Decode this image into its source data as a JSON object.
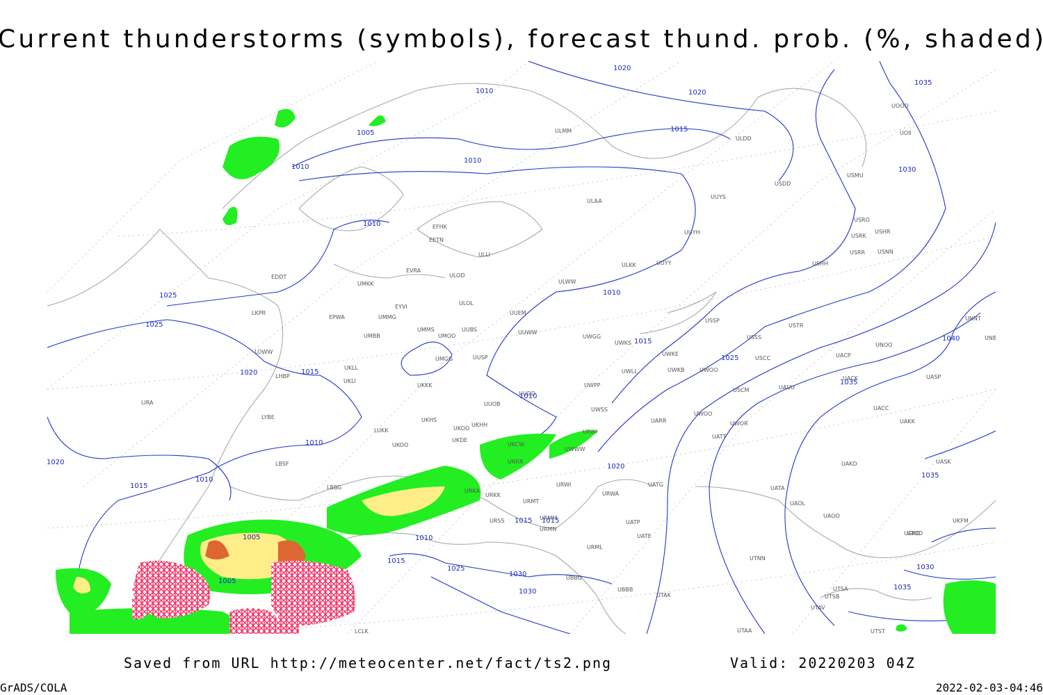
{
  "title": "Current thunderstorms (symbols), forecast thund. prob. (%, shaded)",
  "footer": {
    "source": "Saved from URL http://meteocenter.net/fact/ts2.png",
    "valid": "Valid: 20220203 04Z",
    "software": "GrADS/COLA",
    "timestamp": "2022-02-03-04:46"
  },
  "map": {
    "stations": [
      "ULMM",
      "ULDD",
      "USDD",
      "UUYS",
      "ULAA",
      "USMU",
      "UOOO",
      "UOII",
      "EFHK",
      "EETN",
      "ULLI",
      "UUYH",
      "USRO",
      "USRK",
      "USHR",
      "USRR",
      "USNN",
      "UUYY",
      "ULKK",
      "USHH",
      "EVRA",
      "ULOD",
      "EDDT",
      "UMKK",
      "ULWW",
      "ULOL",
      "EYVI",
      "UUEM",
      "LKPR",
      "EPWA",
      "UMMG",
      "USSP",
      "USTR",
      "UNNT",
      "UMMS",
      "UUBS",
      "UUWW",
      "UMBB",
      "UMOO",
      "UWGG",
      "UWKS",
      "USSS",
      "UNOO",
      "UNBB",
      "UWKE",
      "USCC",
      "UACP",
      "UMGG",
      "UUSP",
      "LOWW",
      "UKLL",
      "UKLI",
      "LHBP",
      "UWLL",
      "UWKB",
      "UWOO",
      "UACK",
      "UASP",
      "UKKK",
      "UUDD",
      "UWPP",
      "USCM",
      "UAUU",
      "LIRA",
      "UUOB",
      "UWSS",
      "UACC",
      "UAKK",
      "LYBE",
      "UKHS",
      "UKOO",
      "UKHH",
      "UWOO",
      "UWOR",
      "UARR",
      "LUKK",
      "UKDE",
      "UKOO",
      "UKCW",
      "UATT",
      "UWWW",
      "URWI",
      "LBSF",
      "URRR",
      "UAKD",
      "UASK",
      "LBBG",
      "URKA",
      "URKK",
      "URWI",
      "UATG",
      "UATA",
      "URWA",
      "URMT",
      "UAOL",
      "URSS",
      "URMM",
      "UAOO",
      "UATP",
      "URMN",
      "UATE",
      "UKFM",
      "UGKO",
      "URML",
      "UTNN",
      "UBBG",
      "UBBB",
      "UTAK",
      "UTSA",
      "UTSB",
      "UTAV",
      "UTAA",
      "LCLK",
      "UTST",
      "UTDD"
    ],
    "isobar_labels": [
      1020,
      1010,
      1020,
      1035,
      1015,
      1005,
      1010,
      1010,
      1030,
      1010,
      1025,
      1010,
      1025,
      1015,
      1025,
      1040,
      1020,
      1015,
      1035,
      1010,
      1010,
      1020,
      1020,
      1035,
      1010,
      1015,
      1015,
      1015,
      1005,
      1010,
      1015,
      1025,
      1030,
      1030,
      1035,
      1005,
      1030
    ]
  }
}
